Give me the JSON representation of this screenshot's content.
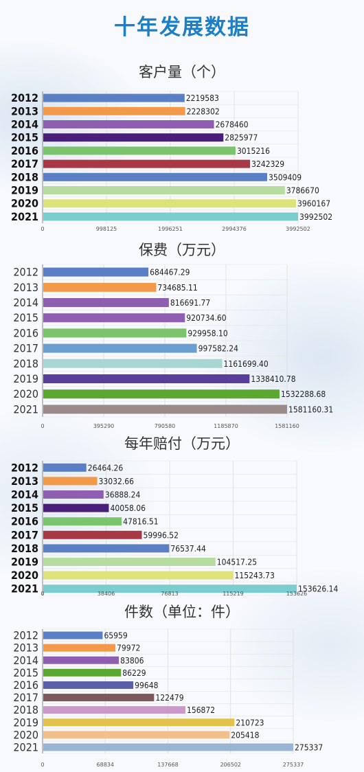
{
  "title": "十年发展数据",
  "chart_data": [
    {
      "type": "bar",
      "title": "客户量（个）",
      "categories": [
        "2012",
        "2013",
        "2014",
        "2015",
        "2016",
        "2017",
        "2018",
        "2019",
        "2020",
        "2021"
      ],
      "values": [
        2219583,
        2228302,
        2678460,
        2825977,
        3015216,
        3242329,
        3509409,
        3786670,
        3960167,
        3992502
      ],
      "value_labels": [
        "2219583",
        "2228302",
        "2678460",
        "2825977",
        "3015216",
        "3242329",
        "3509409",
        "3786670",
        "3960167",
        "3992502"
      ],
      "ticks": [
        0,
        998125,
        1996251,
        2994376,
        3992502
      ],
      "tick_labels": [
        "0",
        "998125",
        "1996251",
        "2994376",
        "3992502"
      ],
      "xlim": [
        0,
        3992502
      ],
      "orientation": "horizontal",
      "colors": [
        "#5a7fc4",
        "#f2994a",
        "#8e5fb0",
        "#4a1f7a",
        "#7cc36e",
        "#a83843",
        "#5a7fc4",
        "#b6dca0",
        "#dfe27a",
        "#7ccdcd"
      ],
      "grid": true
    },
    {
      "type": "bar",
      "title": "保费（万元）",
      "categories": [
        "2012",
        "2013",
        "2014",
        "2015",
        "2016",
        "2017",
        "2018",
        "2019",
        "2020",
        "2021"
      ],
      "values": [
        684467.29,
        734685.11,
        816691.77,
        920734.6,
        929958.1,
        997582.24,
        1161699.4,
        1338410.78,
        1532288.68,
        1581160.31
      ],
      "value_labels": [
        "684467.29",
        "734685.11",
        "816691.77",
        "920734.60",
        "929958.10",
        "997582.24",
        "1161699.40",
        "1338410.78",
        "1532288.68",
        "1581160.31"
      ],
      "ticks": [
        0,
        395290,
        790580,
        1185870,
        1581160
      ],
      "tick_labels": [
        "0",
        "395290",
        "790580",
        "1185870",
        "1581160"
      ],
      "xlim": [
        0,
        1581160.31
      ],
      "orientation": "horizontal",
      "colors": [
        "#5a7fc4",
        "#f2994a",
        "#8e5fb0",
        "#8e5fb0",
        "#7cc36e",
        "#6a9fcf",
        "#a8d6d2",
        "#5a3f9a",
        "#5aa830",
        "#9a8a8a"
      ],
      "grid": true
    },
    {
      "type": "bar",
      "title": "每年赔付（万元）",
      "categories": [
        "2012",
        "2013",
        "2014",
        "2015",
        "2016",
        "2017",
        "2018",
        "2019",
        "2020",
        "2021"
      ],
      "values": [
        26464.26,
        33032.66,
        36888.24,
        40058.06,
        47816.51,
        59996.52,
        76537.44,
        104517.25,
        115243.73,
        153626.14
      ],
      "value_labels": [
        "26464.26",
        "33032.66",
        "36888.24",
        "40058.06",
        "47816.51",
        "59996.52",
        "76537.44",
        "104517.25",
        "115243.73",
        "153626.14"
      ],
      "ticks": [
        0,
        38406,
        76813,
        115219,
        153626
      ],
      "tick_labels": [
        "0",
        "38406",
        "76813",
        "115219",
        "153626"
      ],
      "xlim": [
        0,
        153626.14
      ],
      "orientation": "horizontal",
      "colors": [
        "#5a7fc4",
        "#f2994a",
        "#8e5fb0",
        "#4a1f7a",
        "#7cc36e",
        "#a83843",
        "#5a7fc4",
        "#b6dca0",
        "#dfe27a",
        "#7ccdcd"
      ],
      "grid": true
    },
    {
      "type": "bar",
      "title": "件数（单位：件）",
      "categories": [
        "2012",
        "2013",
        "2014",
        "2015",
        "2016",
        "2017",
        "2018",
        "2019",
        "2020",
        "2021"
      ],
      "values": [
        65959,
        79972,
        83806,
        86229,
        99648,
        122479,
        156872,
        210723,
        205418,
        275337
      ],
      "value_labels": [
        "65959",
        "79972",
        "83806",
        "86229",
        "99648",
        "122479",
        "156872",
        "210723",
        "205418",
        "275337"
      ],
      "ticks": [
        0,
        68834,
        137668,
        206502,
        275337
      ],
      "tick_labels": [
        "0",
        "68834",
        "137668",
        "206502",
        "275337"
      ],
      "xlim": [
        0,
        275337
      ],
      "orientation": "horizontal",
      "colors": [
        "#5a7fc4",
        "#f2994a",
        "#8e5fb0",
        "#5aa830",
        "#5a5fa8",
        "#7a5a5a",
        "#c99ac9",
        "#e2c24a",
        "#f2c08a",
        "#9ab4d4"
      ],
      "grid": true
    }
  ]
}
